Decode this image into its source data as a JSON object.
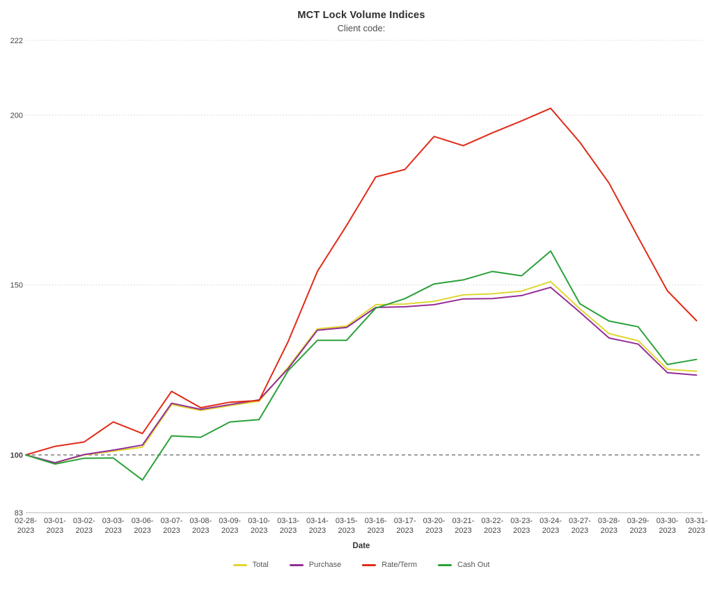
{
  "header": {
    "title": "MCT Lock Volume Indices",
    "subtitle": "Client code:"
  },
  "chart_data": {
    "type": "line",
    "title": "MCT Lock Volume Indices",
    "subtitle": "Client code:",
    "xlabel": "Date",
    "ylabel": "",
    "ylim": [
      83,
      222
    ],
    "y_ticks": [
      222,
      200,
      150,
      100,
      83
    ],
    "grid": "horizontal dotted gray at 150, 200, 222; dashed dark reference line at 100; solid gray baseline at 83; no vertical gridlines",
    "legend_position": "bottom-center",
    "baseline_value": 100,
    "categories": [
      "02-28-2023",
      "03-01-2023",
      "03-02-2023",
      "03-03-2023",
      "03-06-2023",
      "03-07-2023",
      "03-08-2023",
      "03-09-2023",
      "03-10-2023",
      "03-13-2023",
      "03-14-2023",
      "03-15-2023",
      "03-16-2023",
      "03-17-2023",
      "03-20-2023",
      "03-21-2023",
      "03-22-2023",
      "03-23-2023",
      "03-24-2023",
      "03-27-2023",
      "03-28-2023",
      "03-29-2023",
      "03-30-2023",
      "03-31-2023"
    ],
    "series": [
      {
        "name": "Total",
        "color": "#ded72f",
        "values": [
          100,
          97.6,
          100,
          101.1,
          102.3,
          114.8,
          113.1,
          114.5,
          115.8,
          125.8,
          137.1,
          137.9,
          144.2,
          144.4,
          145.2,
          147.1,
          147.4,
          148.2,
          151,
          143,
          135.7,
          133.6,
          125.2,
          124.6
        ]
      },
      {
        "name": "Purchase",
        "color": "#942d96",
        "values": [
          100,
          97.7,
          100.1,
          101.4,
          102.9,
          115.2,
          113.4,
          114.8,
          116.2,
          125.4,
          136.7,
          137.5,
          143.4,
          143.6,
          144.2,
          145.9,
          146,
          146.9,
          149.3,
          142,
          134.4,
          132.6,
          124.2,
          123.5
        ]
      },
      {
        "name": "Rate/Term",
        "color": "#e12a17",
        "values": [
          100,
          102.5,
          103.8,
          109.7,
          106.3,
          118.7,
          113.9,
          115.5,
          116,
          133.4,
          154,
          167.5,
          181.8,
          184,
          193.7,
          191,
          194.8,
          198.3,
          202,
          192,
          180,
          164,
          148.3,
          139.5
        ]
      },
      {
        "name": "Cash Out",
        "color": "#2aa139",
        "values": [
          100,
          97.3,
          99,
          99.1,
          92.6,
          105.6,
          105.2,
          109.7,
          110.4,
          124.8,
          133.7,
          133.7,
          143.2,
          146,
          150.3,
          151.5,
          154,
          152.7,
          160,
          144.5,
          139.4,
          137.7,
          126.6,
          128.1
        ]
      }
    ],
    "style": {
      "grid_dotted_color": "#c9c9c9",
      "reference_line_color": "#3d3d3d",
      "baseline_axis_color": "#b5b5b5",
      "axis_text_color": "#444444",
      "line_width": 2
    }
  }
}
